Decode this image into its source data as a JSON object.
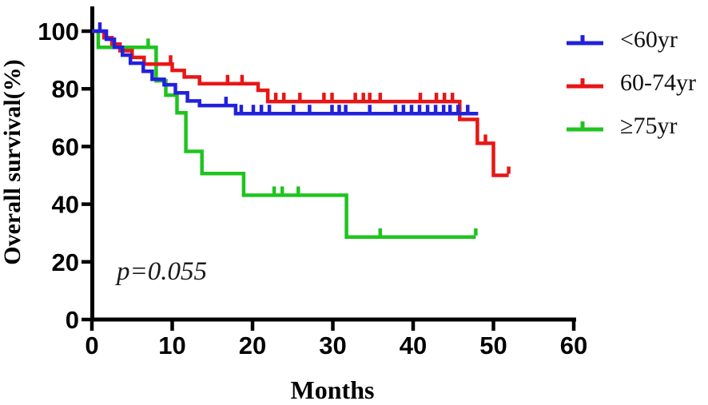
{
  "figure": {
    "x_axis": {
      "label": "Months",
      "ticks": [
        0,
        10,
        20,
        30,
        40,
        50,
        60
      ],
      "range": [
        0,
        60
      ]
    },
    "y_axis": {
      "label": "Overall survival(%)",
      "ticks": [
        0,
        20,
        40,
        60,
        80,
        100
      ],
      "range": [
        0,
        100
      ]
    }
  },
  "chart_data": {
    "type": "line",
    "subtype": "kaplan-meier-step",
    "title": "",
    "xlabel": "Months",
    "ylabel": "Overall survival(%)",
    "xlim": [
      0,
      60
    ],
    "ylim": [
      0,
      100
    ],
    "grid": false,
    "legend_position": "right",
    "p_value_text": "p=0.055",
    "series": [
      {
        "id": "under-60",
        "name": "<60yr",
        "color": "#2121dd",
        "steps": [
          [
            0,
            100
          ],
          [
            1.8,
            97.2
          ],
          [
            2.8,
            94.4
          ],
          [
            3.8,
            91.7
          ],
          [
            4.8,
            88.9
          ],
          [
            6.4,
            86.1
          ],
          [
            7.5,
            83.3
          ],
          [
            9,
            81.4
          ],
          [
            10.4,
            78.6
          ],
          [
            11.9,
            75.8
          ],
          [
            13.4,
            74.2
          ],
          [
            17.9,
            71.4
          ]
        ],
        "end_month": 48.1,
        "censor_months": [
          1,
          16.7,
          18.6,
          20.1,
          21.1,
          22.1,
          25.1,
          27.1,
          29.9,
          30.8,
          31.6,
          34.6,
          37.8,
          38.8,
          39.8,
          40.8,
          41.8,
          42.8,
          43.8,
          44.6,
          45.6,
          46.8
        ]
      },
      {
        "id": "60-74",
        "name": "60-74yr",
        "color": "#e81616",
        "steps": [
          [
            0,
            100
          ],
          [
            1.5,
            97.7
          ],
          [
            2.5,
            95.5
          ],
          [
            3.5,
            93.2
          ],
          [
            5,
            90.9
          ],
          [
            6.5,
            88.6
          ],
          [
            10,
            86.4
          ],
          [
            11.5,
            84.1
          ],
          [
            13.4,
            81.8
          ],
          [
            20.7,
            79.5
          ],
          [
            21.9,
            75.6
          ],
          [
            45.8,
            69.4
          ],
          [
            48,
            61.1
          ],
          [
            50,
            50
          ]
        ],
        "end_month": 51.9,
        "censor_months": [
          9.8,
          16.9,
          18.7,
          22.9,
          23.9,
          25.9,
          28.9,
          29.9,
          32.8,
          33.8,
          34.6,
          35.9,
          40.9,
          42.9,
          43.9,
          44.9,
          49,
          51.9
        ]
      },
      {
        "id": "75-plus",
        "name": "≥75yr",
        "color": "#1fc41f",
        "steps": [
          [
            0,
            100
          ],
          [
            0.8,
            94.4
          ],
          [
            8,
            82.8
          ],
          [
            9.2,
            77.8
          ],
          [
            10.6,
            71.7
          ],
          [
            11.7,
            58.3
          ],
          [
            13.7,
            50.6
          ],
          [
            18.9,
            43.1
          ],
          [
            31.7,
            28.6
          ]
        ],
        "end_month": 47.8,
        "censor_months": [
          7,
          22.7,
          23.7,
          25.7,
          35.9,
          47.8
        ]
      }
    ]
  }
}
